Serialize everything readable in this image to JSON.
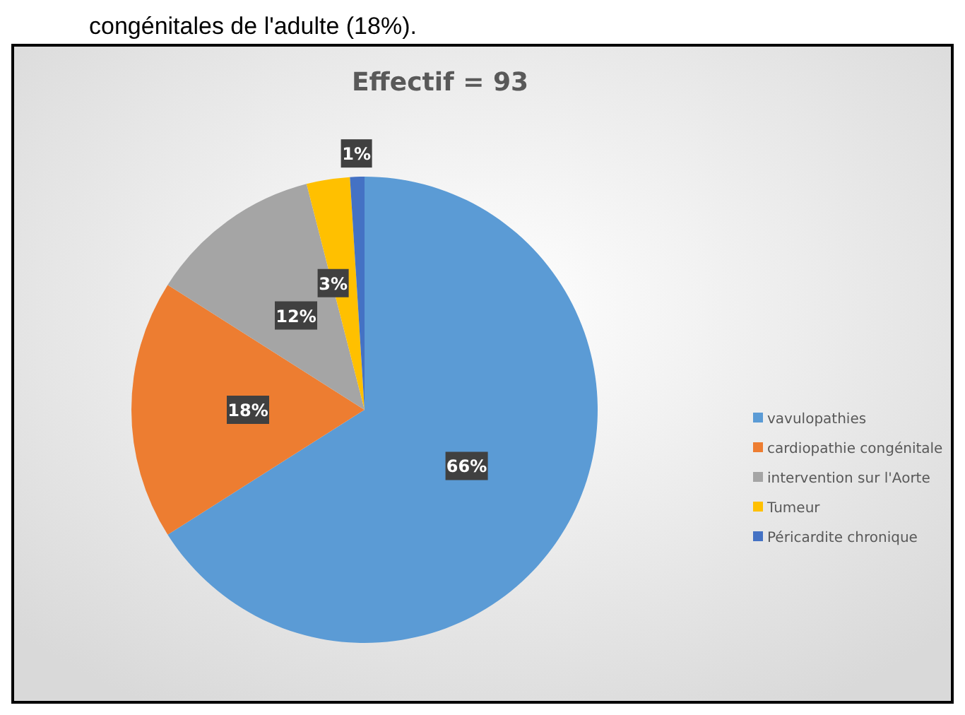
{
  "chart_data": {
    "type": "pie",
    "title": "Effectif = 93",
    "annotations": [
      "congénitales de l'adulte (18%)."
    ],
    "categories": [
      "vavulopathies",
      "cardiopathie congénitale",
      "intervention sur l'Aorte",
      "Tumeur",
      "Péricardite chronique"
    ],
    "values": [
      66,
      18,
      12,
      3,
      1
    ],
    "colors": [
      "#5b9bd5",
      "#ed7d31",
      "#a5a5a5",
      "#ffc000",
      "#4472c4"
    ],
    "value_labels": [
      "66%",
      "18%",
      "12%",
      "3%",
      "1%"
    ],
    "data_labels": true,
    "legend": "right"
  }
}
